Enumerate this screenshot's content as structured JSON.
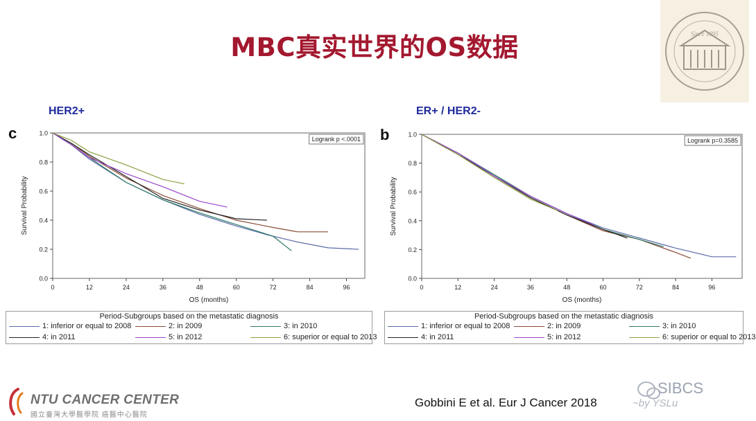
{
  "slide": {
    "title": "MBC真实世界的OS数据",
    "citation": "Gobbini E et al. Eur J Cancer 2018",
    "footer_logo": {
      "name": "NTU CANCER CENTER",
      "subtitle": "國立臺灣大學醫學院 癌醫中心醫院"
    },
    "watermark": {
      "text": "SIBCS",
      "signature": "~by YSLu"
    },
    "seal_text": "Since 1895"
  },
  "colors": {
    "title": "#a3182f",
    "heading": "#1f2a9c",
    "series": [
      "#5a6ba8",
      "#8a4a33",
      "#2e7a66",
      "#222222",
      "#9b45c9",
      "#8aa040"
    ]
  },
  "chart_data": [
    {
      "type": "line",
      "panel_letter": "c",
      "heading": "HER2+",
      "xlabel": "OS (months)",
      "ylabel": "Survival Probability",
      "xticks": [
        0,
        12,
        24,
        36,
        48,
        60,
        72,
        84,
        96
      ],
      "yticks": [
        "0.0",
        "0.2",
        "0.4",
        "0.6",
        "0.8",
        "1.0"
      ],
      "xlim": [
        0,
        102
      ],
      "ylim": [
        0,
        1
      ],
      "grid": false,
      "annotation": "Logrank p <.0001",
      "legend_title": "Period-Subgroups based on the metastatic diagnosis",
      "legend_position": "bottom",
      "series": [
        {
          "name": "1: inferior or equal to 2008",
          "x": [
            0,
            6,
            12,
            24,
            36,
            48,
            60,
            70,
            80,
            90,
            100
          ],
          "y": [
            1,
            0.92,
            0.82,
            0.66,
            0.54,
            0.44,
            0.36,
            0.3,
            0.25,
            0.21,
            0.2
          ]
        },
        {
          "name": "2: in 2009",
          "x": [
            0,
            6,
            12,
            24,
            36,
            48,
            60,
            72,
            80,
            90
          ],
          "y": [
            1,
            0.93,
            0.84,
            0.69,
            0.57,
            0.48,
            0.4,
            0.35,
            0.32,
            0.32
          ]
        },
        {
          "name": "3: in 2010",
          "x": [
            0,
            6,
            12,
            24,
            36,
            48,
            60,
            72,
            78
          ],
          "y": [
            1,
            0.92,
            0.83,
            0.66,
            0.54,
            0.45,
            0.37,
            0.29,
            0.19
          ]
        },
        {
          "name": "4: in 2011",
          "x": [
            0,
            6,
            12,
            24,
            36,
            48,
            60,
            70
          ],
          "y": [
            1,
            0.93,
            0.85,
            0.7,
            0.55,
            0.47,
            0.41,
            0.4
          ]
        },
        {
          "name": "5: in 2012",
          "x": [
            0,
            6,
            12,
            24,
            36,
            48,
            57
          ],
          "y": [
            1,
            0.92,
            0.83,
            0.72,
            0.63,
            0.53,
            0.49
          ]
        },
        {
          "name": "6: superior or equal to 2013",
          "x": [
            0,
            6,
            12,
            24,
            36,
            43
          ],
          "y": [
            1,
            0.95,
            0.87,
            0.78,
            0.68,
            0.65
          ]
        }
      ]
    },
    {
      "type": "line",
      "panel_letter": "b",
      "heading": "ER+ / HER2-",
      "xlabel": "OS (months)",
      "ylabel": "Survival Probability",
      "xticks": [
        0,
        12,
        24,
        36,
        48,
        60,
        72,
        84,
        96
      ],
      "yticks": [
        "0.0",
        "0.2",
        "0.4",
        "0.6",
        "0.8",
        "1.0"
      ],
      "xlim": [
        0,
        106
      ],
      "ylim": [
        0,
        1
      ],
      "grid": false,
      "annotation": "Logrank p=0.3585",
      "legend_title": "Period-Subgroups based on the metastatic diagnosis",
      "legend_position": "bottom",
      "series": [
        {
          "name": "1: inferior or equal to 2008",
          "x": [
            0,
            12,
            24,
            36,
            48,
            60,
            72,
            84,
            96,
            104
          ],
          "y": [
            1,
            0.87,
            0.72,
            0.57,
            0.45,
            0.35,
            0.28,
            0.21,
            0.15,
            0.15
          ]
        },
        {
          "name": "2: in 2009",
          "x": [
            0,
            12,
            24,
            36,
            48,
            60,
            72,
            84,
            89
          ],
          "y": [
            1,
            0.87,
            0.71,
            0.56,
            0.44,
            0.33,
            0.27,
            0.18,
            0.14
          ]
        },
        {
          "name": "3: in 2010",
          "x": [
            0,
            12,
            24,
            36,
            48,
            60,
            72,
            80
          ],
          "y": [
            1,
            0.86,
            0.72,
            0.57,
            0.45,
            0.34,
            0.27,
            0.22
          ]
        },
        {
          "name": "4: in 2011",
          "x": [
            0,
            12,
            24,
            36,
            48,
            60,
            68
          ],
          "y": [
            1,
            0.86,
            0.71,
            0.56,
            0.44,
            0.34,
            0.28
          ]
        },
        {
          "name": "5: in 2012",
          "x": [
            0,
            12,
            24,
            36,
            48,
            57
          ],
          "y": [
            1,
            0.87,
            0.71,
            0.57,
            0.45,
            0.37
          ]
        },
        {
          "name": "6: superior or equal to 2013",
          "x": [
            0,
            12,
            24,
            36,
            45
          ],
          "y": [
            1,
            0.86,
            0.7,
            0.55,
            0.47
          ]
        }
      ]
    }
  ]
}
